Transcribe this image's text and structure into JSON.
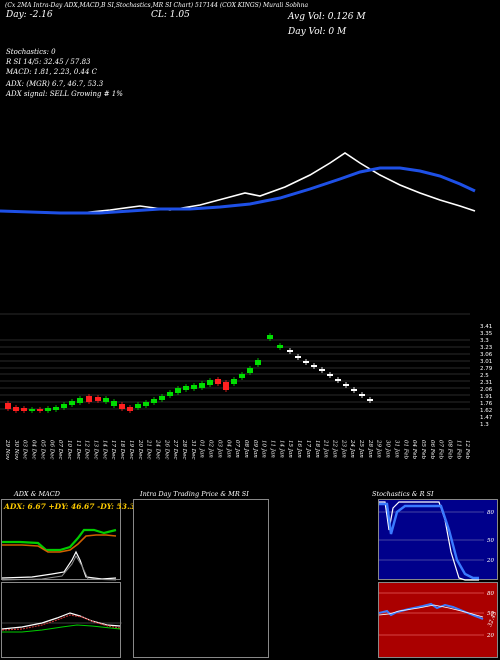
{
  "header": {
    "top_text": "(Cx 2MA Intra-Day ADX,MACD,B SI,Stochastics,MR SI Chart) 517144 (COX KINGS) Murali Sobhna",
    "day_change": "Day: -2.16",
    "close": "CL: 1.05",
    "avg_vol": "Avg Vol: 0.126  M",
    "day_vol": "Day Vol: 0  M"
  },
  "indicators": {
    "stochastics": "Stochastics: 0",
    "rsi": "R               SI 14/5: 32.45 / 57.83",
    "macd": "MACD: 1.81, 2.23,  0.44  C",
    "adx": "ADX:                                        (MGR) 6.7, 46.7,  53.3",
    "adx_signal": "ADX  signal: SELL Growing # 1%"
  },
  "price_axis": [
    "3.41",
    "3.35",
    "3.3",
    "3.23",
    "3.06",
    "3.01",
    "2.79",
    "2.5",
    "2.31",
    "2.06",
    "1.91",
    "1.76",
    "1.62",
    "1.47",
    "1.3"
  ],
  "dates": [
    "29 Nov",
    "30 Nov",
    "03 Dec",
    "04 Dec",
    "05 Dec",
    "06 Dec",
    "07 Dec",
    "10 Dec",
    "11 Dec",
    "12 Dec",
    "13 Dec",
    "14 Dec",
    "17 Dec",
    "18 Dec",
    "19 Dec",
    "20 Dec",
    "21 Dec",
    "24 Dec",
    "26 Dec",
    "27 Dec",
    "28 Dec",
    "31 Dec",
    "01 Jan",
    "02 Jan",
    "03 Jan",
    "04 Jan",
    "07 Jan",
    "08 Jan",
    "09 Jan",
    "10 Jan",
    "11 Jan",
    "14 Jan",
    "15 Jan",
    "16 Jan",
    "17 Jan",
    "18 Jan",
    "21 Jan",
    "22 Jan",
    "23 Jan",
    "24 Jan",
    "25 Jan",
    "28 Jan",
    "29 Jan",
    "30 Jan",
    "31 Jan",
    "01 Feb",
    "04 Feb",
    "05 Feb",
    "06 Feb",
    "07 Feb",
    "08 Feb",
    "11 Feb",
    "12 Feb"
  ],
  "panels": {
    "adx": {
      "title": "ADX  & MACD",
      "readout": "ADX: 6.67  +DY: 46.67  -DY: 53.33"
    },
    "intraday": {
      "title": "Intra  Day Trading Price  & MR                SI"
    },
    "stoch": {
      "title": "Stochastics & R                SI",
      "ticks_top": [
        "80",
        "50",
        "20"
      ],
      "ticks_bottom": [
        "80",
        "50",
        "20"
      ],
      "rsi_value": "32.45"
    }
  },
  "colors": {
    "macd_line": "#1e50e6",
    "signal_line": "#ffffff",
    "up": "#00dd00",
    "down": "#ff2020",
    "rsi_bg": "#aa0000",
    "stoch_bg": "#00008b"
  }
}
